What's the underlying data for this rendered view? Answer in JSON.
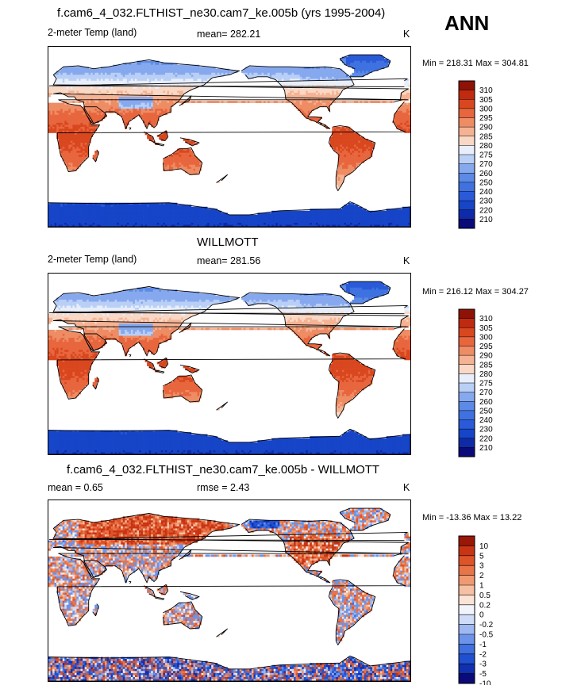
{
  "season": "ANN",
  "panels": [
    {
      "title": "f.cam6_4_032.FLTHIST_ne30.cam7_ke.005b (yrs 1995-2004)",
      "left_label": "2-meter Temp (land)",
      "center_label": "mean= 282.21",
      "right_label": "K",
      "minmax": "Min = 218.31 Max = 304.81"
    },
    {
      "title": "WILLMOTT",
      "left_label": "2-meter Temp (land)",
      "center_label": "mean= 281.56",
      "right_label": "K",
      "minmax": "Min = 216.12 Max = 304.27"
    },
    {
      "title": "f.cam6_4_032.FLTHIST_ne30.cam7_ke.005b - WILLMOTT",
      "left_label": "mean =   0.65",
      "center_label": "rmse =   2.43",
      "right_label": "K",
      "minmax": "Min = -13.36 Max =  13.22"
    }
  ],
  "chart_data": [
    {
      "type": "heatmap",
      "title": "f.cam6_4_032.FLTHIST_ne30.cam7_ke.005b (yrs 1995-2004)",
      "field": "2-meter Temp (land)",
      "units": "K",
      "mean": 282.21,
      "min": 218.31,
      "max": 304.81,
      "colorbar_levels": [
        210,
        220,
        230,
        240,
        250,
        260,
        270,
        275,
        280,
        285,
        290,
        295,
        300,
        305,
        310
      ],
      "colorbar_labels": [
        "310",
        "305",
        "300",
        "295",
        "290",
        "285",
        "280",
        "275",
        "270",
        "260",
        "250",
        "240",
        "230",
        "220",
        "210"
      ]
    },
    {
      "type": "heatmap",
      "title": "WILLMOTT",
      "field": "2-meter Temp (land)",
      "units": "K",
      "mean": 281.56,
      "min": 216.12,
      "max": 304.27,
      "colorbar_levels": [
        210,
        220,
        230,
        240,
        250,
        260,
        270,
        275,
        280,
        285,
        290,
        295,
        300,
        305,
        310
      ],
      "colorbar_labels": [
        "310",
        "305",
        "300",
        "295",
        "290",
        "285",
        "280",
        "275",
        "270",
        "260",
        "250",
        "240",
        "230",
        "220",
        "210"
      ]
    },
    {
      "type": "heatmap",
      "title": "f.cam6_4_032.FLTHIST_ne30.cam7_ke.005b - WILLMOTT",
      "units": "K",
      "mean": 0.65,
      "rmse": 2.43,
      "min": -13.36,
      "max": 13.22,
      "colorbar_levels": [
        -10,
        -5,
        -3,
        -2,
        -1,
        -0.5,
        -0.2,
        0,
        0.2,
        0.5,
        1,
        2,
        3,
        5,
        10
      ],
      "colorbar_labels": [
        "10",
        "5",
        "3",
        "2",
        "1",
        "0.5",
        "0.2",
        "0",
        "-0.2",
        "-0.5",
        "-1",
        "-2",
        "-3",
        "-5",
        "-10"
      ]
    }
  ],
  "palette_abs": [
    "#0a0a78",
    "#0f2aa8",
    "#1745c8",
    "#2a5ad8",
    "#3f72e0",
    "#5c8ae6",
    "#86a8ee",
    "#b9cff6",
    "#e8eefa",
    "#f9d8c6",
    "#f4b394",
    "#ee8c64",
    "#e8663e",
    "#d9471f",
    "#c02a10",
    "#8e1206"
  ],
  "palette_diff": [
    "#0a0a78",
    "#1030b0",
    "#2050d0",
    "#4070e0",
    "#6c93ea",
    "#9db8f2",
    "#cfdcf8",
    "#f1f4fb",
    "#fbe4d6",
    "#f6c0a2",
    "#f09a72",
    "#e87448",
    "#de5428",
    "#c83414",
    "#9a1606"
  ]
}
